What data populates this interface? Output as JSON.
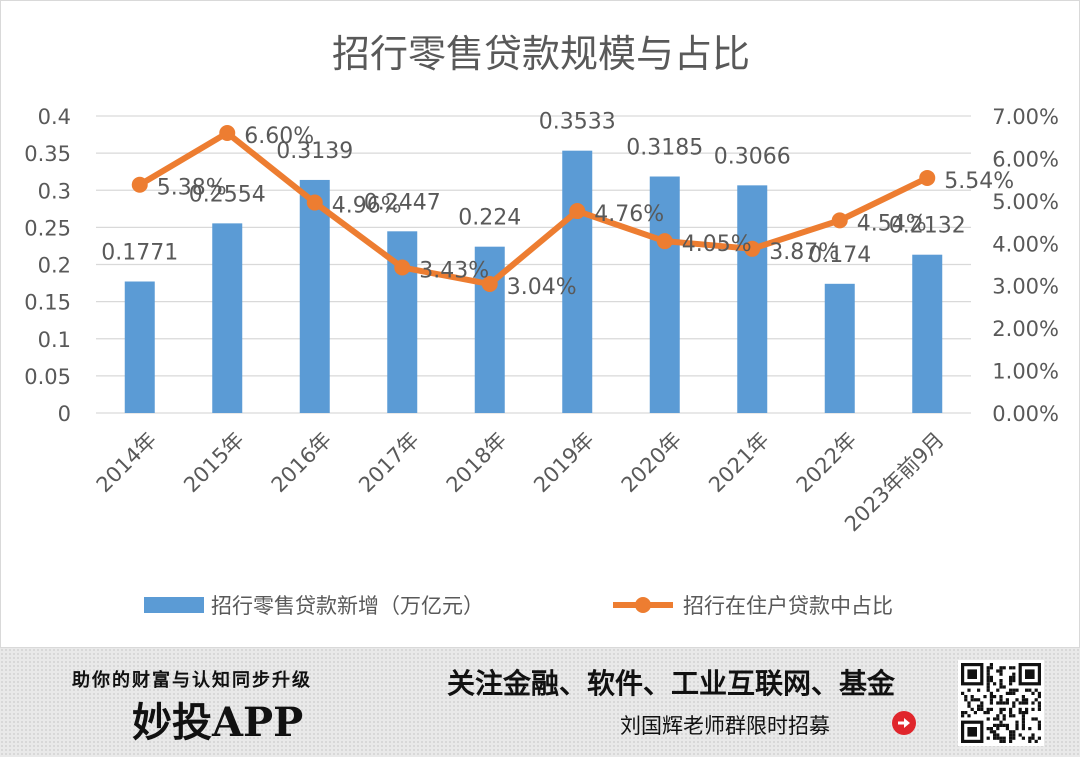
{
  "chart_data": {
    "type": "bar+line",
    "title": "招行零售贷款规模与占比",
    "categories": [
      "2014年",
      "2015年",
      "2016年",
      "2017年",
      "2018年",
      "2019年",
      "2020年",
      "2021年",
      "2022年",
      "2023年前9月"
    ],
    "series": [
      {
        "name": "招行零售贷款新增（万亿元）",
        "type": "bar",
        "axis": "left",
        "values": [
          0.1771,
          0.2554,
          0.3139,
          0.2447,
          0.224,
          0.3533,
          0.3185,
          0.3066,
          0.174,
          0.2132
        ],
        "labels": [
          "0.1771",
          "0.2554",
          "0.3139",
          "0.2447",
          "0.224",
          "0.3533",
          "0.3185",
          "0.3066",
          "0.174",
          "0.2132"
        ]
      },
      {
        "name": "招行在住户贷款中占比",
        "type": "line",
        "axis": "right",
        "values": [
          5.38,
          6.6,
          4.96,
          3.43,
          3.04,
          4.76,
          4.05,
          3.87,
          4.54,
          5.54
        ],
        "labels": [
          "5.38%",
          "6.60%",
          "4.96%",
          "3.43%",
          "3.04%",
          "4.76%",
          "4.05%",
          "3.87%",
          "4.54%",
          "5.54%"
        ]
      }
    ],
    "y_left": {
      "range": [
        0,
        0.4
      ],
      "ticks": [
        "0",
        "0.05",
        "0.1",
        "0.15",
        "0.2",
        "0.25",
        "0.3",
        "0.35",
        "0.4"
      ]
    },
    "y_right": {
      "range": [
        0,
        7
      ],
      "ticks": [
        "0.00%",
        "1.00%",
        "2.00%",
        "3.00%",
        "4.00%",
        "5.00%",
        "6.00%",
        "7.00%"
      ]
    },
    "grid": true,
    "legend_position": "bottom",
    "colors": {
      "bar": "#5b9bd5",
      "line": "#ed7d31",
      "grid": "#d9d9d9",
      "text": "#595959"
    }
  },
  "footer": {
    "slogan": "助你的财富与认知同步升级",
    "app_name": "妙投APP",
    "follow_text": "关注金融、软件、工业互联网、基金",
    "recruit_text": "刘国辉老师群限时招募",
    "recruit_icon": "arrow-right-circle-icon",
    "qr_icon": "qr-code-icon"
  }
}
